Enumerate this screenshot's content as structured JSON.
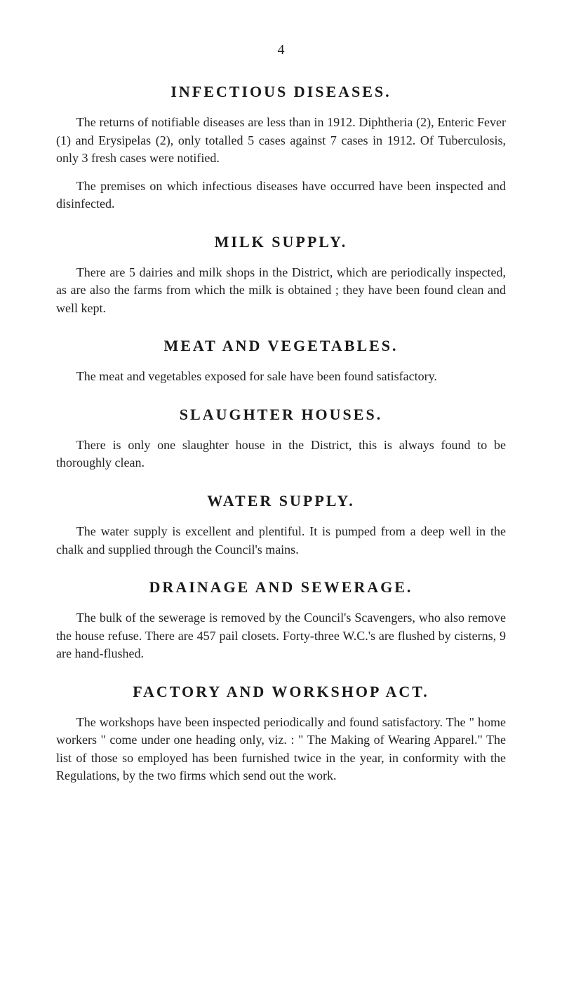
{
  "page_number": "4",
  "sections": [
    {
      "title": "INFECTIOUS DISEASES.",
      "paragraphs": [
        "The returns of notifiable diseases are less than in 1912. Diphtheria (2), Enteric Fever (1) and Erysipelas (2), only totalled 5 cases against 7 cases in 1912. Of Tuberculosis, only 3 fresh cases were notified.",
        "The premises on which infectious diseases have occurred have been inspected and disinfected."
      ]
    },
    {
      "title": "MILK SUPPLY.",
      "paragraphs": [
        "There are 5 dairies and milk shops in the District, which are periodically inspected, as are also the farms from which the milk is obtained ; they have been found clean and well kept."
      ]
    },
    {
      "title": "MEAT AND VEGETABLES.",
      "paragraphs": [
        "The meat and vegetables exposed for sale have been found satisfactory."
      ]
    },
    {
      "title": "SLAUGHTER HOUSES.",
      "paragraphs": [
        "There is only one slaughter house in the District, this is always found to be thoroughly clean."
      ]
    },
    {
      "title": "WATER SUPPLY.",
      "paragraphs": [
        "The water supply is excellent and plentiful. It is pumped from a deep well in the chalk and supplied through the Council's mains."
      ]
    },
    {
      "title": "DRAINAGE AND SEWERAGE.",
      "paragraphs": [
        "The bulk of the sewerage is removed by the Council's Scavengers, who also remove the house refuse. There are 457 pail closets. Forty-three W.C.'s are flushed by cisterns, 9 are hand-flushed."
      ]
    },
    {
      "title": "FACTORY AND WORKSHOP ACT.",
      "paragraphs": [
        "The workshops have been inspected periodically and found satisfactory. The \" home workers \" come under one heading only, viz. : \" The Making of Wearing Apparel.\" The list of those so employed has been furnished twice in the year, in conformity with the Regulations, by the two firms which send out the work."
      ]
    }
  ],
  "styling": {
    "background_color": "#ffffff",
    "text_color": "#1a1a1a",
    "body_fontsize": 18,
    "title_fontsize": 22,
    "title_letter_spacing": "3px",
    "line_height": 1.42,
    "font_family": "Georgia, 'Times New Roman', serif"
  }
}
